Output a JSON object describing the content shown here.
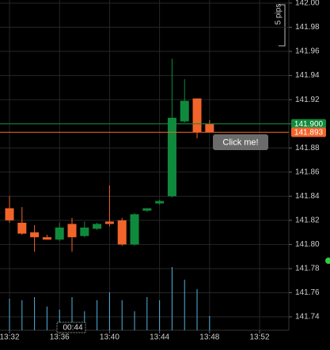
{
  "chart_data": {
    "type": "candlestick",
    "x": [
      812,
      813,
      814,
      815,
      816,
      817,
      818,
      819,
      820,
      821,
      822,
      823,
      824,
      825,
      826,
      827,
      828
    ],
    "open": [
      141.83,
      141.818,
      141.81,
      141.806,
      141.804,
      141.817,
      141.807,
      141.813,
      141.819,
      141.82,
      141.8,
      141.828,
      141.834,
      141.84,
      141.902,
      141.921,
      141.9
    ],
    "high": [
      141.84,
      141.831,
      141.816,
      141.808,
      141.818,
      141.822,
      141.819,
      141.818,
      141.849,
      141.822,
      141.826,
      141.829,
      141.837,
      141.954,
      141.937,
      141.921,
      141.903
    ],
    "low": [
      141.818,
      141.808,
      141.794,
      141.804,
      141.803,
      141.794,
      141.806,
      141.812,
      141.815,
      141.799,
      141.799,
      141.827,
      141.833,
      141.839,
      141.901,
      141.888,
      141.893
    ],
    "close": [
      141.82,
      141.809,
      141.806,
      141.804,
      141.814,
      141.806,
      141.814,
      141.817,
      141.817,
      141.8,
      141.825,
      141.83,
      141.836,
      141.905,
      141.919,
      141.893,
      141.893
    ],
    "volume": [
      40,
      38,
      42,
      30,
      26,
      42,
      24,
      38,
      48,
      38,
      24,
      42,
      38,
      80,
      64,
      52,
      18
    ],
    "up_color": "#0f8a3c",
    "down_color": "#f2642a",
    "volume_color": "#4fb3e0",
    "xlim": [
      811.24,
      834.34
    ],
    "ylim": [
      141.7289,
      142.0026
    ],
    "xticks": [
      {
        "value": 812,
        "label": "13:32"
      },
      {
        "value": 816,
        "label": "13:36"
      },
      {
        "value": 820,
        "label": "13:40"
      },
      {
        "value": 824,
        "label": "13:44"
      },
      {
        "value": 828,
        "label": "13:48"
      },
      {
        "value": 832,
        "label": "13:52"
      }
    ],
    "yticks": [
      {
        "value": 142.0,
        "label": "142.00"
      },
      {
        "value": 141.98,
        "label": "141.98"
      },
      {
        "value": 141.96,
        "label": "141.96"
      },
      {
        "value": 141.94,
        "label": "141.94"
      },
      {
        "value": 141.92,
        "label": "141.92"
      },
      {
        "value": 141.9,
        "label": "141.90"
      },
      {
        "value": 141.88,
        "label": "141.88"
      },
      {
        "value": 141.86,
        "label": "141.86"
      },
      {
        "value": 141.84,
        "label": "141.84"
      },
      {
        "value": 141.82,
        "label": "141.82"
      },
      {
        "value": 141.8,
        "label": "141.80"
      },
      {
        "value": 141.78,
        "label": "141.78"
      },
      {
        "value": 141.76,
        "label": "141.76"
      },
      {
        "value": 141.74,
        "label": "141.74"
      }
    ],
    "grid": true,
    "price_lines": [
      {
        "value": 141.9,
        "label": "141.900",
        "color": "#0f8a3c"
      },
      {
        "value": 141.893,
        "label": "141.893",
        "color": "#f2642a"
      }
    ],
    "scale_note": "5 pips",
    "timer": "00:44",
    "button": "Click me!"
  }
}
